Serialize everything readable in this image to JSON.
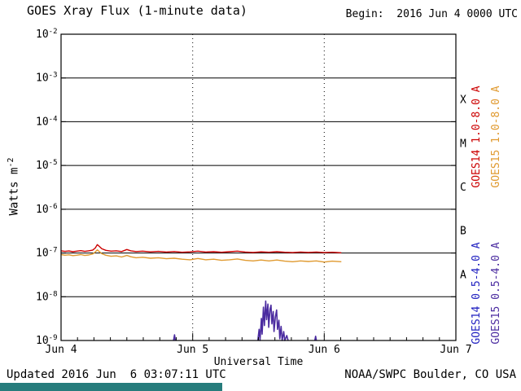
{
  "title": "GOES Xray Flux (1-minute data)",
  "begin_label": "Begin:  2016 Jun 4 0000 UTC",
  "axes": {
    "ylabel_main": "Watts m",
    "ylabel_sup": "-2",
    "xlabel": "Universal Time"
  },
  "legend": {
    "goes14_long": {
      "text": "GOES14 1.0-8.0 A",
      "color": "#cc0000"
    },
    "goes15_long": {
      "text": "GOES15 1.0-8.0 A",
      "color": "#e09a30"
    },
    "goes14_short": {
      "text": "GOES14 0.5-4.0 A",
      "color": "#2020c0"
    },
    "goes15_short": {
      "text": "GOES15 0.5-4.0 A",
      "color": "#4b2ca0"
    }
  },
  "footer": {
    "updated": "Updated 2016 Jun  6 03:07:11 UTC",
    "source": "NOAA/SWPC Boulder, CO USA"
  },
  "colors": {
    "red": "#cc0000",
    "orange": "#e09a30",
    "blue": "#2020c0",
    "purple": "#4b2ca0",
    "footer_bar": "#267c7c"
  },
  "chart_data": {
    "type": "line",
    "title": "GOES Xray Flux (1-minute data)",
    "xlabel": "Universal Time",
    "ylabel": "Watts m^-2",
    "y_scale": "log",
    "ylim": [
      1e-09,
      0.01
    ],
    "xlim_days": [
      0,
      3
    ],
    "x_unit": "days since 2016 Jun 4 0000 UTC",
    "x_ticks": [
      {
        "t": 0,
        "label": "Jun 4"
      },
      {
        "t": 1,
        "label": "Jun 5"
      },
      {
        "t": 2,
        "label": "Jun 6"
      },
      {
        "t": 3,
        "label": "Jun 7"
      }
    ],
    "y_exponents": [
      -2,
      -3,
      -4,
      -5,
      -6,
      -7,
      -8,
      -9
    ],
    "flare_classes": [
      {
        "label": "X",
        "exp": -3.5
      },
      {
        "label": "M",
        "exp": -4.5
      },
      {
        "label": "C",
        "exp": -5.5
      },
      {
        "label": "B",
        "exp": -6.5
      },
      {
        "label": "A",
        "exp": -7.5
      }
    ],
    "grid": {
      "h_solid": true,
      "v_dotted_days": [
        1,
        2
      ]
    },
    "legend_position": "right-vertical",
    "series": [
      {
        "id": "goes14-long",
        "name": "GOES14 1.0-8.0 A",
        "color": "#cc0000",
        "width": 1.4,
        "segments": [
          [
            [
              0.0,
              1.12e-07
            ],
            [
              0.03,
              1.09e-07
            ],
            [
              0.06,
              1.11e-07
            ],
            [
              0.09,
              1.07e-07
            ],
            [
              0.12,
              1.1e-07
            ],
            [
              0.15,
              1.13e-07
            ],
            [
              0.18,
              1.09e-07
            ],
            [
              0.21,
              1.12e-07
            ],
            [
              0.24,
              1.16e-07
            ],
            [
              0.26,
              1.3e-07
            ],
            [
              0.275,
              1.55e-07
            ],
            [
              0.29,
              1.42e-07
            ],
            [
              0.31,
              1.25e-07
            ],
            [
              0.34,
              1.15e-07
            ],
            [
              0.38,
              1.1e-07
            ],
            [
              0.42,
              1.12e-07
            ],
            [
              0.46,
              1.08e-07
            ],
            [
              0.5,
              1.2e-07
            ],
            [
              0.53,
              1.12e-07
            ],
            [
              0.57,
              1.08e-07
            ],
            [
              0.62,
              1.1e-07
            ],
            [
              0.68,
              1.06e-07
            ],
            [
              0.74,
              1.09e-07
            ],
            [
              0.8,
              1.05e-07
            ],
            [
              0.86,
              1.08e-07
            ],
            [
              0.92,
              1.04e-07
            ],
            [
              0.98,
              1.06e-07
            ],
            [
              1.04,
              1.1e-07
            ],
            [
              1.1,
              1.05e-07
            ],
            [
              1.16,
              1.07e-07
            ],
            [
              1.22,
              1.04e-07
            ],
            [
              1.28,
              1.07e-07
            ],
            [
              1.34,
              1.1e-07
            ],
            [
              1.4,
              1.05e-07
            ],
            [
              1.46,
              1.03e-07
            ],
            [
              1.52,
              1.06e-07
            ],
            [
              1.58,
              1.04e-07
            ],
            [
              1.64,
              1.07e-07
            ],
            [
              1.7,
              1.04e-07
            ],
            [
              1.76,
              1.02e-07
            ],
            [
              1.82,
              1.05e-07
            ],
            [
              1.88,
              1.03e-07
            ],
            [
              1.94,
              1.05e-07
            ],
            [
              2.0,
              1.02e-07
            ],
            [
              2.06,
              1.04e-07
            ],
            [
              2.13,
              1.01e-07
            ]
          ]
        ]
      },
      {
        "id": "goes15-long",
        "name": "GOES15 1.0-8.0 A",
        "color": "#e09a30",
        "width": 1.4,
        "segments": [
          [
            [
              0.0,
              9.2e-08
            ],
            [
              0.03,
              8.9e-08
            ],
            [
              0.06,
              9.1e-08
            ],
            [
              0.09,
              8.7e-08
            ],
            [
              0.12,
              8.9e-08
            ],
            [
              0.15,
              9.2e-08
            ],
            [
              0.18,
              8.8e-08
            ],
            [
              0.21,
              9e-08
            ],
            [
              0.24,
              9.5e-08
            ],
            [
              0.26,
              1.05e-07
            ],
            [
              0.275,
              1.18e-07
            ],
            [
              0.29,
              1.08e-07
            ],
            [
              0.31,
              9.6e-08
            ],
            [
              0.34,
              8.9e-08
            ],
            [
              0.38,
              8.4e-08
            ],
            [
              0.42,
              8.6e-08
            ],
            [
              0.46,
              8.1e-08
            ],
            [
              0.5,
              8.8e-08
            ],
            [
              0.53,
              8.2e-08
            ],
            [
              0.57,
              7.8e-08
            ],
            [
              0.62,
              8e-08
            ],
            [
              0.68,
              7.6e-08
            ],
            [
              0.74,
              7.8e-08
            ],
            [
              0.8,
              7.4e-08
            ],
            [
              0.86,
              7.6e-08
            ],
            [
              0.92,
              7.2e-08
            ],
            [
              0.98,
              7e-08
            ],
            [
              1.04,
              7.5e-08
            ],
            [
              1.1,
              7e-08
            ],
            [
              1.16,
              7.2e-08
            ],
            [
              1.22,
              6.8e-08
            ],
            [
              1.28,
              7e-08
            ],
            [
              1.34,
              7.3e-08
            ],
            [
              1.4,
              6.8e-08
            ],
            [
              1.46,
              6.6e-08
            ],
            [
              1.52,
              6.9e-08
            ],
            [
              1.58,
              6.6e-08
            ],
            [
              1.64,
              6.9e-08
            ],
            [
              1.7,
              6.5e-08
            ],
            [
              1.76,
              6.3e-08
            ],
            [
              1.82,
              6.6e-08
            ],
            [
              1.88,
              6.4e-08
            ],
            [
              1.94,
              6.6e-08
            ],
            [
              2.0,
              6.2e-08
            ],
            [
              2.06,
              6.5e-08
            ],
            [
              2.13,
              6.3e-08
            ]
          ]
        ]
      },
      {
        "id": "goes15-short",
        "name": "GOES15 0.5-4.0 A",
        "color": "#4b2ca0",
        "width": 1.6,
        "segments": [
          [
            [
              0.855,
              1e-09
            ],
            [
              0.862,
              1.35e-09
            ],
            [
              0.868,
              1e-09
            ]
          ],
          [
            [
              1.495,
              1e-09
            ],
            [
              1.505,
              1.8e-09
            ],
            [
              1.512,
              1e-09
            ],
            [
              1.522,
              3.2e-09
            ],
            [
              1.528,
              1.4e-09
            ],
            [
              1.538,
              5.8e-09
            ],
            [
              1.545,
              2.2e-09
            ],
            [
              1.555,
              8e-09
            ],
            [
              1.562,
              3e-09
            ],
            [
              1.572,
              6.8e-09
            ],
            [
              1.578,
              2e-09
            ],
            [
              1.588,
              5.2e-09
            ],
            [
              1.595,
              6.4e-09
            ],
            [
              1.602,
              2.4e-09
            ],
            [
              1.612,
              4.6e-09
            ],
            [
              1.618,
              1.6e-09
            ],
            [
              1.628,
              3.4e-09
            ],
            [
              1.638,
              5e-09
            ],
            [
              1.645,
              1.8e-09
            ],
            [
              1.655,
              2.9e-09
            ],
            [
              1.662,
              1.1e-09
            ],
            [
              1.672,
              2.1e-09
            ],
            [
              1.68,
              1e-09
            ],
            [
              1.692,
              1.6e-09
            ],
            [
              1.7,
              1e-09
            ],
            [
              1.715,
              1.3e-09
            ],
            [
              1.725,
              1e-09
            ]
          ],
          [
            [
              1.928,
              1e-09
            ],
            [
              1.934,
              1.25e-09
            ],
            [
              1.94,
              1e-09
            ]
          ]
        ]
      },
      {
        "id": "goes14-short",
        "name": "GOES14 0.5-4.0 A",
        "color": "#2020c0",
        "width": 1.4,
        "segments": []
      }
    ]
  }
}
